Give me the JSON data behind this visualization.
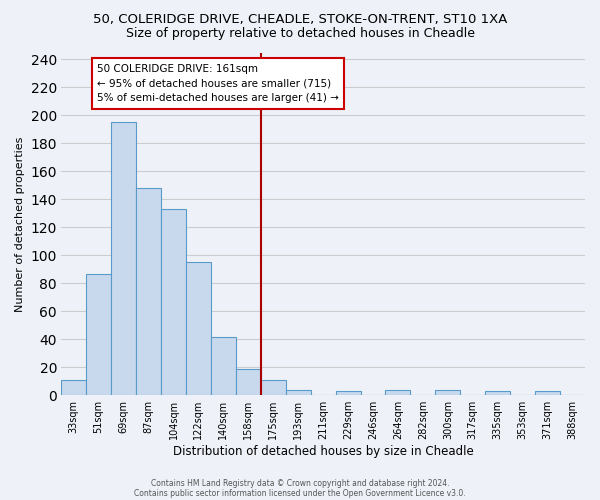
{
  "title_line1": "50, COLERIDGE DRIVE, CHEADLE, STOKE-ON-TRENT, ST10 1XA",
  "title_line2": "Size of property relative to detached houses in Cheadle",
  "xlabel": "Distribution of detached houses by size in Cheadle",
  "ylabel": "Number of detached properties",
  "bar_labels": [
    "33sqm",
    "51sqm",
    "69sqm",
    "87sqm",
    "104sqm",
    "122sqm",
    "140sqm",
    "158sqm",
    "175sqm",
    "193sqm",
    "211sqm",
    "229sqm",
    "246sqm",
    "264sqm",
    "282sqm",
    "300sqm",
    "317sqm",
    "335sqm",
    "353sqm",
    "371sqm",
    "388sqm"
  ],
  "bar_heights": [
    11,
    87,
    195,
    148,
    133,
    95,
    42,
    19,
    11,
    4,
    0,
    3,
    0,
    4,
    0,
    4,
    0,
    3,
    0,
    3,
    0
  ],
  "bar_color": "#c8d9ee",
  "bar_edge_color": "#5a9aca",
  "vline_x": 7.5,
  "vline_color": "#aa0000",
  "annotation_title": "50 COLERIDGE DRIVE: 161sqm",
  "annotation_line1": "← 95% of detached houses are smaller (715)",
  "annotation_line2": "5% of semi-detached houses are larger (41) →",
  "annotation_box_edge": "#cc0000",
  "ylim": [
    0,
    245
  ],
  "yticks": [
    0,
    20,
    40,
    60,
    80,
    100,
    120,
    140,
    160,
    180,
    200,
    220,
    240
  ],
  "footer_line1": "Contains HM Land Registry data © Crown copyright and database right 2024.",
  "footer_line2": "Contains public sector information licensed under the Open Government Licence v3.0.",
  "bg_color": "#eef2f8",
  "grid_color": "#cccccc",
  "title_fontsize": 9.5,
  "subtitle_fontsize": 9,
  "tick_fontsize": 7,
  "xlabel_fontsize": 8.5,
  "ylabel_fontsize": 8
}
